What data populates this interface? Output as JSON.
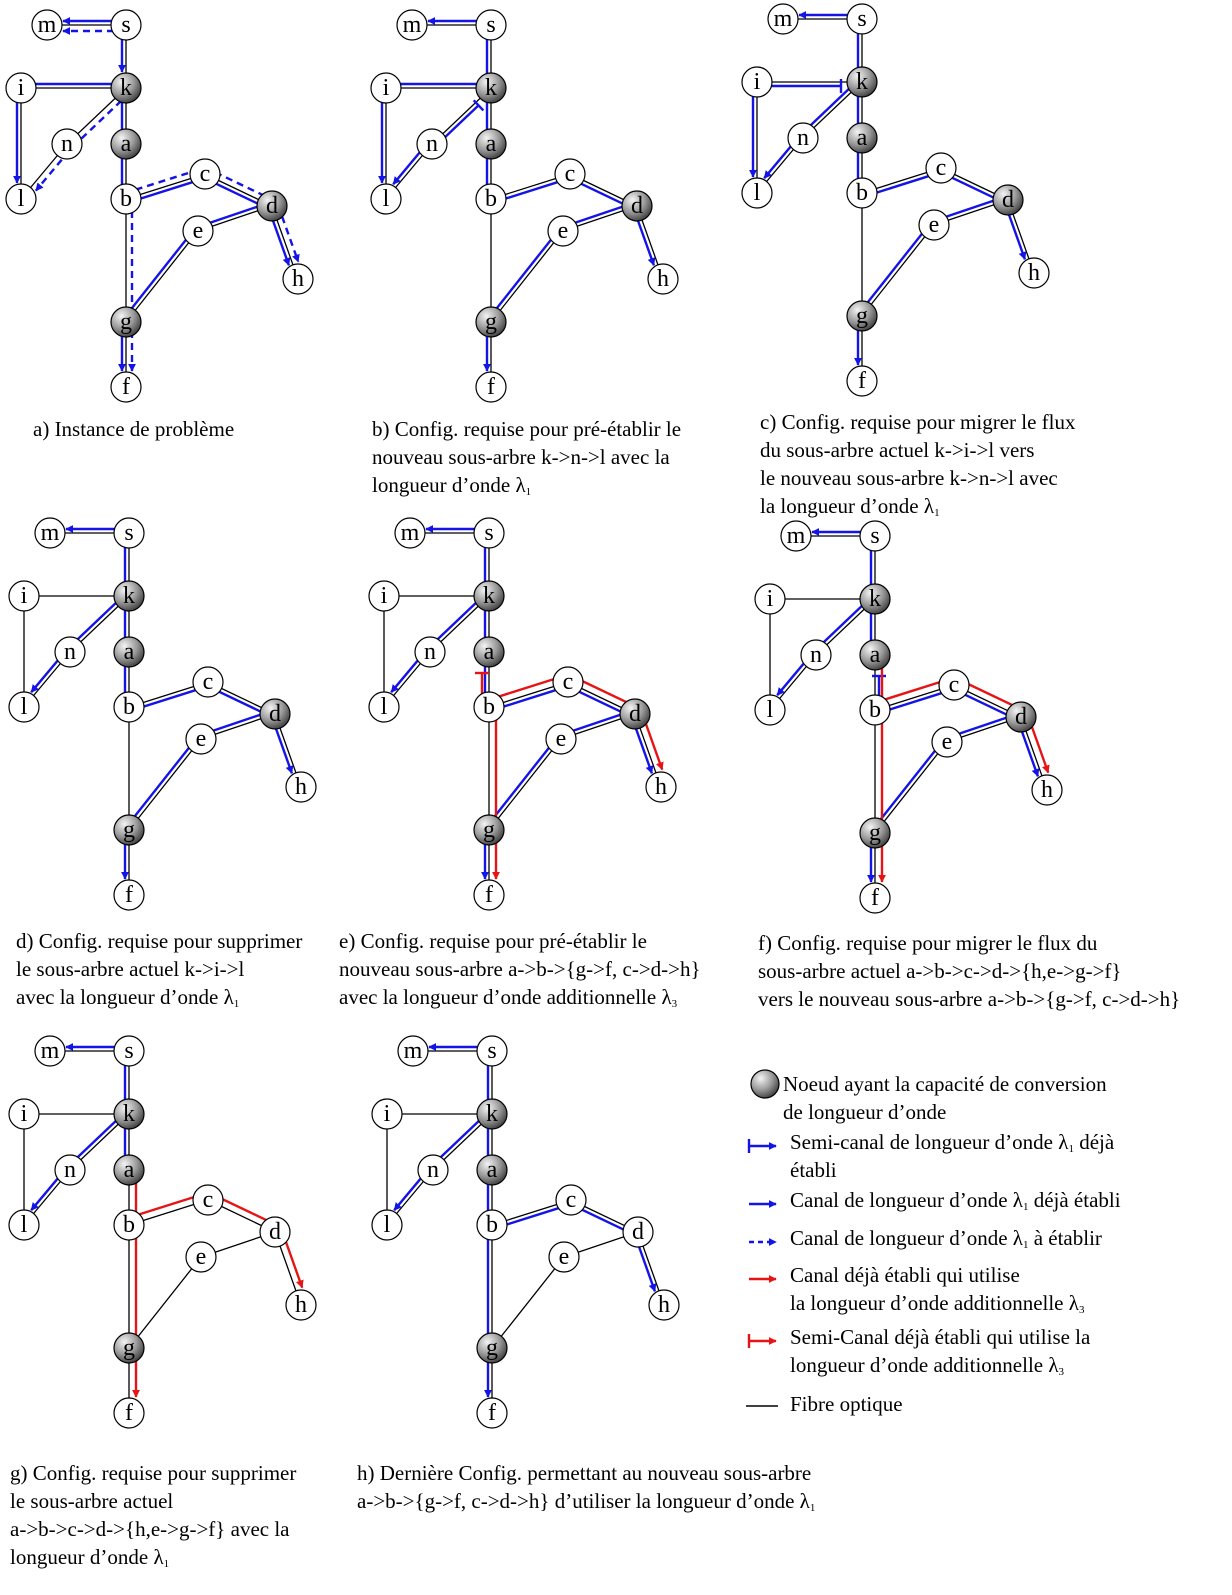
{
  "node_names": [
    "m",
    "s",
    "i",
    "k",
    "n",
    "a",
    "l",
    "b",
    "c",
    "d",
    "e",
    "h",
    "g",
    "f"
  ],
  "colors": {
    "blue": "#1414e6",
    "red": "#e61414",
    "fiber": "#000000",
    "gray_dark": "#4a4a4a",
    "gray_light": "#f2f2f2"
  },
  "panels": [
    {
      "id": "a",
      "converters": [
        "k",
        "a",
        "d",
        "g"
      ],
      "caption": [
        "a) Instance de problème"
      ],
      "routes": [
        {
          "color": "blue",
          "style": "solid",
          "path": [
            "s",
            "k"
          ],
          "arrow": true
        },
        {
          "color": "blue",
          "style": "solid",
          "path": [
            "s",
            "m"
          ],
          "arrow": true
        },
        {
          "color": "blue",
          "style": "dashed",
          "path": [
            "s",
            "m"
          ],
          "arrow": true
        },
        {
          "color": "blue",
          "style": "solid",
          "path": [
            "k",
            "i",
            "l"
          ],
          "arrow": true
        },
        {
          "color": "blue",
          "style": "dashed",
          "path": [
            "k",
            "n",
            "l"
          ],
          "arrow": true
        },
        {
          "color": "blue",
          "style": "solid",
          "path": [
            "k",
            "a",
            "b",
            "c",
            "d",
            "h"
          ],
          "arrow": true
        },
        {
          "color": "blue",
          "style": "solid",
          "path": [
            "d",
            "e",
            "g",
            "f"
          ],
          "arrow": true
        },
        {
          "color": "blue",
          "style": "dashed",
          "path": [
            "b",
            "c",
            "d",
            "h"
          ],
          "arrow": true
        },
        {
          "color": "blue",
          "style": "dashed",
          "path": [
            "b",
            "g",
            "f"
          ],
          "arrow": true
        }
      ]
    },
    {
      "id": "b",
      "converters": [
        "k",
        "a",
        "d",
        "g"
      ],
      "caption": [
        "b) Config. requise pour pré-établir le",
        "nouveau sous-arbre k->n->l avec la",
        " longueur d’onde  λ|1"
      ],
      "routes": [
        {
          "color": "blue",
          "style": "solid",
          "path": [
            "s",
            "m"
          ],
          "arrow": true
        },
        {
          "color": "blue",
          "style": "solid",
          "path": [
            "s",
            "k",
            "a",
            "b",
            "c",
            "d",
            "h"
          ],
          "arrow": true
        },
        {
          "color": "blue",
          "style": "solid",
          "path": [
            "d",
            "e",
            "g",
            "f"
          ],
          "arrow": true
        },
        {
          "color": "blue",
          "style": "solid",
          "path": [
            "k",
            "i",
            "l"
          ],
          "arrow": true
        },
        {
          "color": "blue",
          "style": "solid",
          "path": [
            "n",
            "l"
          ],
          "arrow": true
        },
        {
          "color": "blue",
          "style": "semi",
          "path": [
            "n",
            "k"
          ],
          "arrow": false
        }
      ]
    },
    {
      "id": "c",
      "converters": [
        "k",
        "a",
        "d",
        "g"
      ],
      "caption": [
        "c) Config. requise pour migrer le flux",
        "du sous-arbre actuel k->i->l vers",
        "le nouveau sous-arbre k->n->l avec",
        "la longueur d’onde λ|1"
      ],
      "routes": [
        {
          "color": "blue",
          "style": "solid",
          "path": [
            "s",
            "m"
          ],
          "arrow": true
        },
        {
          "color": "blue",
          "style": "solid",
          "path": [
            "s",
            "k",
            "a",
            "b",
            "c",
            "d",
            "h"
          ],
          "arrow": true
        },
        {
          "color": "blue",
          "style": "solid",
          "path": [
            "d",
            "e",
            "g",
            "f"
          ],
          "arrow": true
        },
        {
          "color": "blue",
          "style": "solid",
          "path": [
            "k",
            "n",
            "l"
          ],
          "arrow": true
        },
        {
          "color": "blue",
          "style": "solid",
          "path": [
            "i",
            "l"
          ],
          "arrow": true
        },
        {
          "color": "blue",
          "style": "semi",
          "path": [
            "i",
            "k"
          ],
          "arrow": false
        }
      ]
    },
    {
      "id": "d",
      "converters": [
        "k",
        "a",
        "d",
        "g"
      ],
      "caption": [
        "d) Config. requise pour supprimer",
        "le sous-arbre actuel k->i->l",
        "avec la longueur d’onde  λ|1"
      ],
      "routes": [
        {
          "color": "blue",
          "style": "solid",
          "path": [
            "s",
            "m"
          ],
          "arrow": true
        },
        {
          "color": "blue",
          "style": "solid",
          "path": [
            "s",
            "k",
            "a",
            "b",
            "c",
            "d",
            "h"
          ],
          "arrow": true
        },
        {
          "color": "blue",
          "style": "solid",
          "path": [
            "d",
            "e",
            "g",
            "f"
          ],
          "arrow": true
        },
        {
          "color": "blue",
          "style": "solid",
          "path": [
            "k",
            "n",
            "l"
          ],
          "arrow": true
        }
      ]
    },
    {
      "id": "e",
      "converters": [
        "k",
        "a",
        "d",
        "g"
      ],
      "caption": [
        "e) Config. requise pour pré-établir le",
        "nouveau sous-arbre a->b->{g->f, c->d->h}",
        "avec la longueur d’onde additionnelle λ|3"
      ],
      "routes": [
        {
          "color": "blue",
          "style": "solid",
          "path": [
            "s",
            "m"
          ],
          "arrow": true
        },
        {
          "color": "blue",
          "style": "solid",
          "path": [
            "s",
            "k",
            "a",
            "b",
            "c",
            "d",
            "h"
          ],
          "arrow": true
        },
        {
          "color": "blue",
          "style": "solid",
          "path": [
            "d",
            "e",
            "g",
            "f"
          ],
          "arrow": true
        },
        {
          "color": "blue",
          "style": "solid",
          "path": [
            "k",
            "n",
            "l"
          ],
          "arrow": true
        },
        {
          "color": "red",
          "style": "solid",
          "path": [
            "b",
            "c",
            "d",
            "h"
          ],
          "arrow": true
        },
        {
          "color": "red",
          "style": "solid",
          "path": [
            "b",
            "g",
            "f"
          ],
          "arrow": true
        },
        {
          "color": "red",
          "style": "semi",
          "path": [
            "b",
            "a"
          ],
          "arrow": false
        }
      ]
    },
    {
      "id": "f",
      "converters": [
        "k",
        "a",
        "d",
        "g"
      ],
      "caption": [
        "f) Config. requise pour migrer le flux du",
        "sous-arbre actuel a->b->c->d->{h,e->g->f}",
        "vers le nouveau sous-arbre a->b->{g->f, c->d->h}"
      ],
      "routes": [
        {
          "color": "blue",
          "style": "solid",
          "path": [
            "s",
            "m"
          ],
          "arrow": true
        },
        {
          "color": "blue",
          "style": "solid",
          "path": [
            "s",
            "k",
            "a"
          ],
          "arrow": false
        },
        {
          "color": "blue",
          "style": "solid",
          "path": [
            "b",
            "c",
            "d",
            "h"
          ],
          "arrow": true
        },
        {
          "color": "blue",
          "style": "solid",
          "path": [
            "d",
            "e",
            "g",
            "f"
          ],
          "arrow": true
        },
        {
          "color": "blue",
          "style": "semi",
          "path": [
            "b",
            "a"
          ],
          "arrow": false
        },
        {
          "color": "blue",
          "style": "solid",
          "path": [
            "k",
            "n",
            "l"
          ],
          "arrow": true
        },
        {
          "color": "red",
          "style": "solid",
          "path": [
            "a",
            "b",
            "c",
            "d",
            "h"
          ],
          "arrow": true
        },
        {
          "color": "red",
          "style": "solid",
          "path": [
            "b",
            "g",
            "f"
          ],
          "arrow": true
        }
      ]
    },
    {
      "id": "g",
      "converters": [
        "k",
        "a",
        "g"
      ],
      "caption": [
        "g) Config. requise pour supprimer",
        "le sous-arbre actuel",
        "a->b->c->d->{h,e->g->f} avec la",
        " longueur d’onde  λ|1"
      ],
      "routes": [
        {
          "color": "blue",
          "style": "solid",
          "path": [
            "s",
            "m"
          ],
          "arrow": true
        },
        {
          "color": "blue",
          "style": "solid",
          "path": [
            "s",
            "k",
            "a"
          ],
          "arrow": false
        },
        {
          "color": "blue",
          "style": "solid",
          "path": [
            "k",
            "n",
            "l"
          ],
          "arrow": true
        },
        {
          "color": "red",
          "style": "solid",
          "path": [
            "a",
            "b",
            "c",
            "d",
            "h"
          ],
          "arrow": true
        },
        {
          "color": "red",
          "style": "solid",
          "path": [
            "b",
            "g",
            "f"
          ],
          "arrow": true
        }
      ]
    },
    {
      "id": "h",
      "converters": [
        "k",
        "a",
        "g"
      ],
      "caption": [
        "h) Dernière Config. permettant au nouveau sous-arbre",
        "a->b->{g->f, c->d->h}  d’utiliser la longueur d’onde λ|1"
      ],
      "routes": [
        {
          "color": "blue",
          "style": "solid",
          "path": [
            "s",
            "m"
          ],
          "arrow": true
        },
        {
          "color": "blue",
          "style": "solid",
          "path": [
            "s",
            "k",
            "a",
            "b",
            "c",
            "d",
            "h"
          ],
          "arrow": true
        },
        {
          "color": "blue",
          "style": "solid",
          "path": [
            "b",
            "g",
            "f"
          ],
          "arrow": true
        },
        {
          "color": "blue",
          "style": "solid",
          "path": [
            "k",
            "n",
            "l"
          ],
          "arrow": true
        }
      ]
    }
  ],
  "legend": [
    {
      "kind": "converter",
      "text": [
        "Noeud ayant la capacité de conversion",
        "de longueur d’onde"
      ]
    },
    {
      "kind": "blue-semi",
      "text": [
        "Semi-canal de longueur d’onde λ|1 déjà",
        "établi"
      ]
    },
    {
      "kind": "blue-solid",
      "text": [
        "Canal de longueur d’onde λ|1 déjà établi"
      ]
    },
    {
      "kind": "blue-dashed",
      "text": [
        "Canal de longueur d’onde λ|1 à établir"
      ]
    },
    {
      "kind": "red-solid",
      "text": [
        "Canal déjà établi qui utilise",
        "  la longueur d’onde additionnelle λ|3"
      ]
    },
    {
      "kind": "red-semi",
      "text": [
        "Semi-Canal déjà établi qui utilise la",
        "longueur d’onde additionnelle λ|3"
      ]
    },
    {
      "kind": "fiber",
      "text": [
        "Fibre optique"
      ]
    }
  ]
}
